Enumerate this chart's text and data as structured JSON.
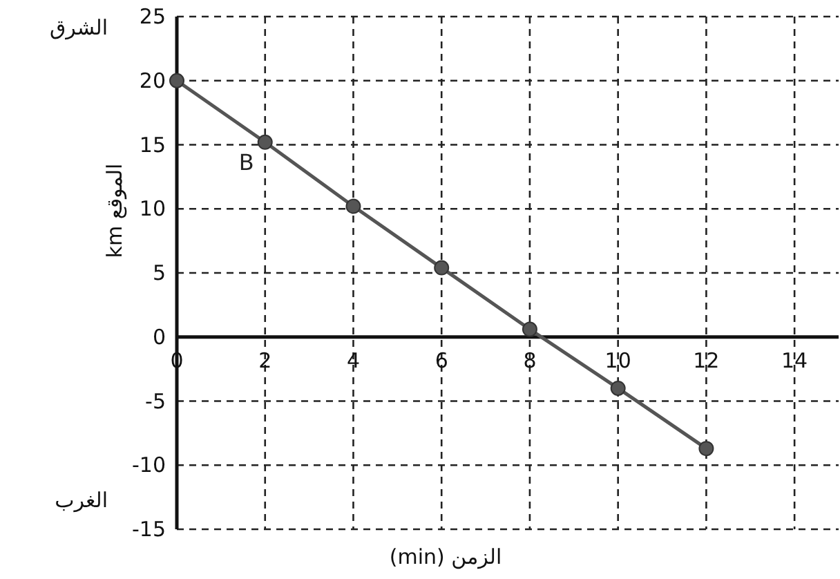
{
  "chart_data": {
    "type": "line",
    "xlabel": "الزمن (min)",
    "ylabel": "الموقع km",
    "x": [
      0,
      2,
      4,
      6,
      8,
      10,
      12
    ],
    "series": [
      {
        "color": "#555555",
        "values": [
          20,
          15.2,
          10.2,
          5.4,
          0.6,
          -4,
          -8.7
        ]
      }
    ],
    "xlim": [
      0,
      15
    ],
    "xticks": [
      0,
      2,
      4,
      6,
      8,
      10,
      12,
      14
    ],
    "ylim": [
      -15,
      25
    ],
    "yticks": [
      -15,
      -10,
      -5,
      0,
      5,
      10,
      15,
      20,
      25
    ],
    "grid": true,
    "marker": "circle",
    "line_style": "solid",
    "annotations": [
      {
        "text": "B",
        "x": 2,
        "y": 15.2
      },
      "الشرق",
      "الغرب"
    ]
  }
}
